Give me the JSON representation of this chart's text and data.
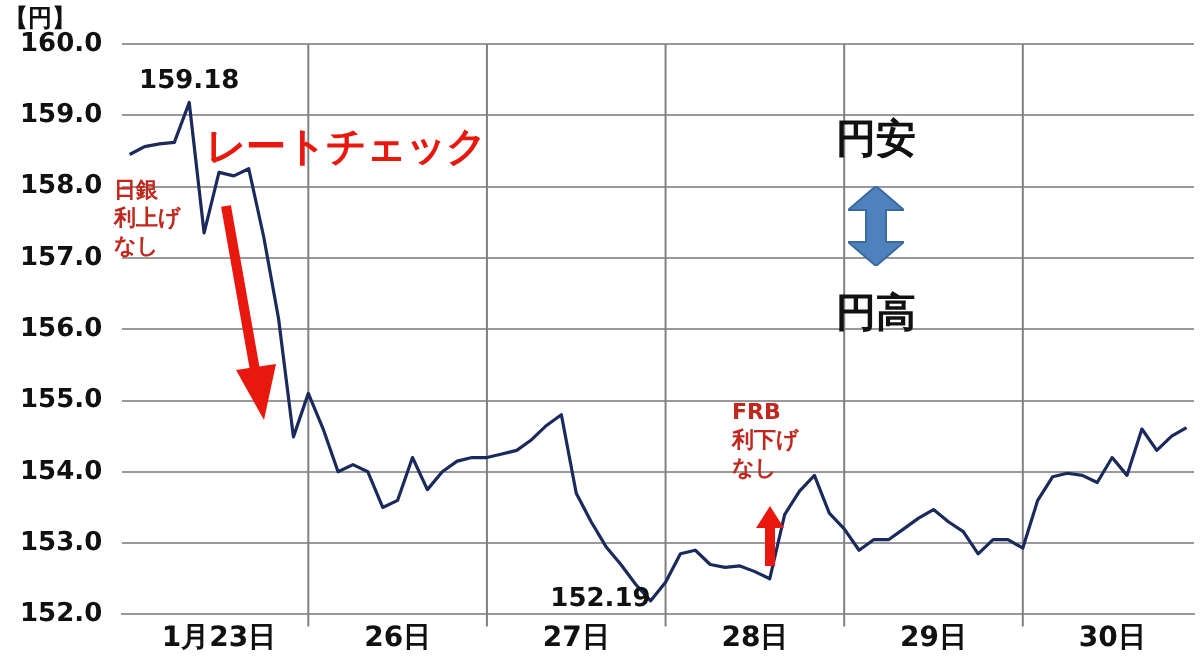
{
  "chart_data": {
    "type": "line",
    "ylabel": "【円】",
    "categories": [
      null,
      null,
      null,
      null,
      null,
      null,
      "1月23日",
      null,
      null,
      null,
      null,
      null,
      null,
      null,
      null,
      null,
      null,
      null,
      "26日",
      null,
      null,
      null,
      null,
      null,
      null,
      null,
      null,
      null,
      null,
      null,
      "27日",
      null,
      null,
      null,
      null,
      null,
      null,
      null,
      null,
      null,
      null,
      null,
      "28日",
      null,
      null,
      null,
      null,
      null,
      null,
      null,
      null,
      null,
      null,
      null,
      "29日",
      null,
      null,
      null,
      null,
      null,
      null,
      null,
      null,
      null,
      null,
      null,
      "30日",
      null,
      null,
      null,
      null,
      null
    ],
    "series": [
      {
        "color": "#1b2a5c",
        "values": [
          158.45,
          158.56,
          158.6,
          158.62,
          159.18,
          157.35,
          158.2,
          158.15,
          158.25,
          157.3,
          156.15,
          154.49,
          155.1,
          154.6,
          154.0,
          154.1,
          154.0,
          153.5,
          153.6,
          154.2,
          153.75,
          154.0,
          154.15,
          154.2,
          154.2,
          154.25,
          154.3,
          154.45,
          154.65,
          154.8,
          153.7,
          153.3,
          152.95,
          152.7,
          152.42,
          152.19,
          152.45,
          152.85,
          152.9,
          152.7,
          152.66,
          152.68,
          152.6,
          152.5,
          153.4,
          153.73,
          153.95,
          153.42,
          153.2,
          152.9,
          153.05,
          153.05,
          153.2,
          153.35,
          153.47,
          153.3,
          153.16,
          152.85,
          153.05,
          153.05,
          152.93,
          153.6,
          153.93,
          153.98,
          153.95,
          153.85,
          154.2,
          153.95,
          154.6,
          154.3,
          154.5,
          154.62
        ],
        "value_labels": [
          null,
          null,
          null,
          null,
          "159.18",
          null,
          null,
          null,
          null,
          null,
          null,
          null,
          null,
          null,
          null,
          null,
          null,
          null,
          null,
          null,
          null,
          null,
          null,
          null,
          null,
          null,
          null,
          null,
          null,
          null,
          null,
          null,
          null,
          null,
          null,
          "152.19",
          null,
          null,
          null,
          null,
          null,
          null,
          null,
          null,
          null,
          null,
          null,
          null,
          null,
          null,
          null,
          null,
          null,
          null,
          null,
          null,
          null,
          null,
          null,
          null,
          null,
          null,
          null,
          null,
          null,
          null,
          null,
          null,
          null,
          null,
          null,
          null
        ]
      }
    ],
    "ylim": [
      152,
      160
    ],
    "yticks": [
      {
        "value": 152,
        "label": "152.0"
      },
      {
        "value": 153,
        "label": "153.0"
      },
      {
        "value": 154,
        "label": "154.0"
      },
      {
        "value": 155,
        "label": "155.0"
      },
      {
        "value": 156,
        "label": "156.0"
      },
      {
        "value": 157,
        "label": "157.0"
      },
      {
        "value": 158,
        "label": "158.0"
      },
      {
        "value": 159,
        "label": "159.0"
      },
      {
        "value": 160,
        "label": "160.0"
      }
    ],
    "annotations": [
      "レートチェック",
      "日銀利上げなし",
      "FRB利下げなし",
      "円安",
      "円高"
    ],
    "grid": true,
    "legend": false,
    "marker": "none",
    "line_style": "solid"
  }
}
